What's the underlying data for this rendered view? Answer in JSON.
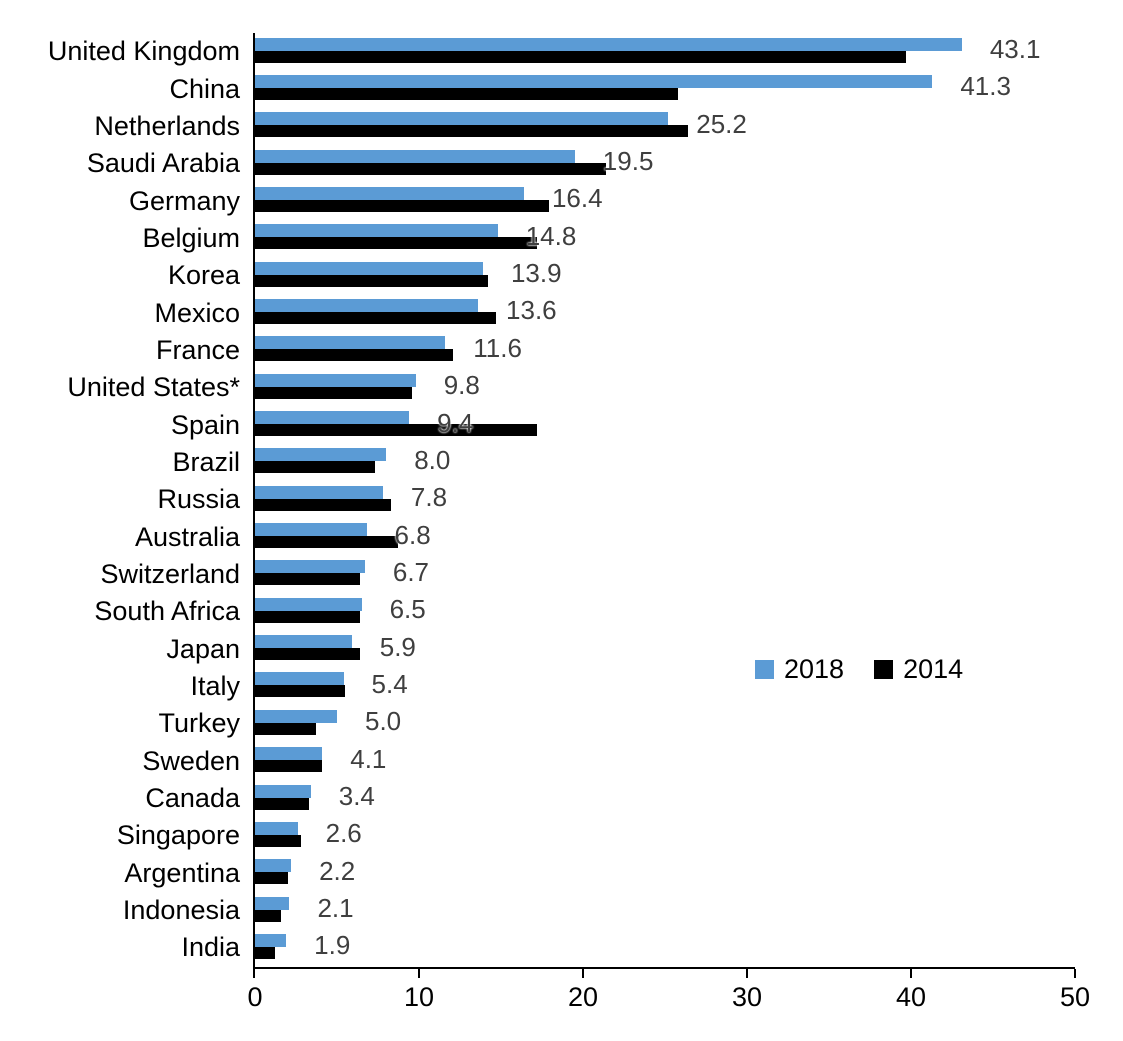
{
  "chart_data": {
    "type": "bar",
    "orientation": "horizontal",
    "title": "",
    "xlabel": "",
    "ylabel": "",
    "xlim": [
      0,
      50
    ],
    "x_ticks": [
      0,
      10,
      20,
      30,
      40,
      50
    ],
    "grid": false,
    "legend_position": "middle-right-inside",
    "value_label_series": "2018",
    "value_label_color": "#3F3F3F",
    "categories": [
      "United Kingdom",
      "China",
      "Netherlands",
      "Saudi Arabia",
      "Germany",
      "Belgium",
      "Korea",
      "Mexico",
      "France",
      "United States*",
      "Spain",
      "Brazil",
      "Russia",
      "Australia",
      "Switzerland",
      "South Africa",
      "Japan",
      "Italy",
      "Turkey",
      "Sweden",
      "Canada",
      "Singapore",
      "Argentina",
      "Indonesia",
      "India"
    ],
    "series": [
      {
        "name": "2018",
        "color": "#5B9BD5",
        "values": [
          43.1,
          41.3,
          25.2,
          19.5,
          16.4,
          14.8,
          13.9,
          13.6,
          11.6,
          9.8,
          9.4,
          8.0,
          7.8,
          6.8,
          6.7,
          6.5,
          5.9,
          5.4,
          5.0,
          4.1,
          3.4,
          2.6,
          2.2,
          2.1,
          1.9
        ],
        "labels_shown": [
          "43.1",
          "41.3",
          "25.2",
          "19.5",
          "16.4",
          "14.8",
          "13.9",
          "13.6",
          "11.6",
          "9.8",
          "9.4",
          "8.0",
          "7.8",
          "6.8",
          "6.7",
          "6.5",
          "5.9",
          "5.4",
          "5.0",
          "4.1",
          "3.4",
          "2.6",
          "2.2",
          "2.1",
          "1.9"
        ]
      },
      {
        "name": "2014",
        "color": "#000000",
        "values": [
          39.7,
          25.8,
          26.4,
          21.4,
          17.9,
          17.2,
          14.2,
          14.7,
          12.1,
          9.6,
          17.2,
          7.3,
          8.3,
          8.7,
          6.4,
          6.4,
          6.4,
          5.5,
          3.7,
          4.1,
          3.3,
          2.8,
          2.0,
          1.6,
          1.2
        ]
      }
    ]
  },
  "legend": {
    "items": [
      {
        "label": "2018",
        "color": "#5B9BD5"
      },
      {
        "label": "2014",
        "color": "#000000"
      }
    ]
  }
}
